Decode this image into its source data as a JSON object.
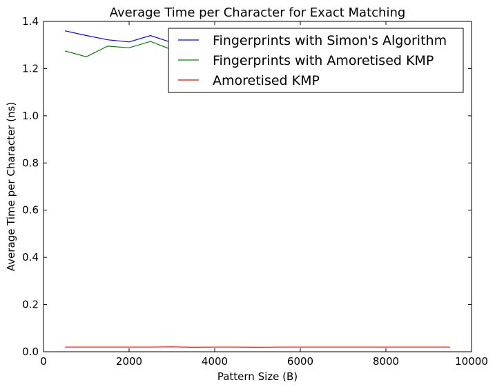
{
  "chart_data": {
    "type": "line",
    "title": "Average Time per Character for Exact Matching",
    "xlabel": "Pattern Size (B)",
    "ylabel": "Average Time per Character (ns)",
    "xlim": [
      0,
      10000
    ],
    "ylim": [
      0.0,
      1.4
    ],
    "xticks": [
      "0",
      "2000",
      "4000",
      "6000",
      "8000",
      "10000"
    ],
    "yticks": [
      "0.0",
      "0.2",
      "0.4",
      "0.6",
      "0.8",
      "1.0",
      "1.2",
      "1.4"
    ],
    "grid": false,
    "legend_position": "top-right",
    "x": [
      500,
      1000,
      1500,
      2000,
      2500,
      3000,
      3500,
      4000,
      4500,
      5000,
      5500,
      6000,
      6500,
      7000,
      7500,
      8000,
      8500,
      9000,
      9500
    ],
    "series": [
      {
        "name": "Fingerprints with Simon's Algorithm",
        "color": "#0000ff",
        "values": [
          1.36,
          1.34,
          1.322,
          1.313,
          1.34,
          1.31,
          1.3,
          1.3,
          1.3,
          1.3,
          1.3,
          1.3,
          1.3,
          1.3,
          1.3,
          1.3,
          1.3,
          1.3,
          1.3
        ]
      },
      {
        "name": "Fingerprints with Amoretised KMP",
        "color": "#008000",
        "values": [
          1.275,
          1.25,
          1.295,
          1.288,
          1.315,
          1.28,
          1.28,
          1.28,
          1.28,
          1.28,
          1.28,
          1.28,
          1.28,
          1.28,
          1.28,
          1.28,
          1.28,
          1.28,
          1.28
        ]
      },
      {
        "name": "Amoretised KMP",
        "color": "#ff0000",
        "values": [
          0.02,
          0.02,
          0.02,
          0.02,
          0.02,
          0.021,
          0.019,
          0.02,
          0.02,
          0.019,
          0.02,
          0.02,
          0.02,
          0.02,
          0.02,
          0.02,
          0.02,
          0.02,
          0.02
        ]
      }
    ]
  }
}
